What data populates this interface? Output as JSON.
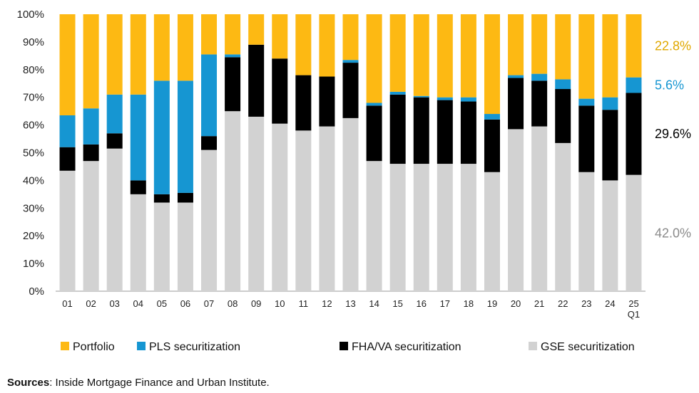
{
  "chart_data": {
    "type": "bar",
    "stacked": true,
    "ylim": [
      0,
      100
    ],
    "yticks": [
      "0%",
      "10%",
      "20%",
      "30%",
      "40%",
      "50%",
      "60%",
      "70%",
      "80%",
      "90%",
      "100%"
    ],
    "categories": [
      "01",
      "02",
      "03",
      "04",
      "05",
      "06",
      "07",
      "08",
      "09",
      "10",
      "11",
      "12",
      "13",
      "14",
      "15",
      "16",
      "17",
      "18",
      "19",
      "20",
      "21",
      "22",
      "23",
      "24",
      "25"
    ],
    "last_category_sublabel": "Q1",
    "series": [
      {
        "name": "GSE securitization",
        "color": "#d2d2d2",
        "values": [
          43.5,
          47,
          51.5,
          35,
          32,
          32,
          51,
          65,
          63,
          60.5,
          58,
          59.5,
          62.5,
          47,
          46,
          46,
          46,
          46,
          43,
          58.5,
          59.5,
          53.5,
          43,
          40,
          42.0
        ]
      },
      {
        "name": "FHA/VA securitization",
        "color": "#000000",
        "values": [
          8.5,
          6,
          5.5,
          5,
          3,
          3.5,
          5,
          19.5,
          26,
          23.5,
          20,
          18,
          20,
          20,
          25,
          24,
          23,
          22.5,
          19,
          18.5,
          16.5,
          19.5,
          24,
          25.5,
          29.6
        ]
      },
      {
        "name": "PLS securitization",
        "color": "#1696d2",
        "values": [
          11.5,
          13,
          14,
          31,
          41,
          40.5,
          29.5,
          1,
          0,
          0,
          0,
          0,
          1,
          1,
          1,
          0.5,
          1,
          1.5,
          2,
          1,
          2.5,
          3.5,
          2.5,
          4.5,
          5.6
        ]
      },
      {
        "name": "Portfolio",
        "color": "#fdb913",
        "values": [
          36.5,
          34,
          29,
          29,
          24,
          24,
          14.5,
          14.5,
          11,
          16,
          22,
          22.5,
          16.5,
          32,
          28,
          29.5,
          30,
          30,
          36,
          22,
          21.5,
          23.5,
          30.5,
          30,
          22.8
        ]
      }
    ],
    "end_labels": [
      {
        "text": "22.8%",
        "color": "#e0a800"
      },
      {
        "text": "5.6%",
        "color": "#1696d2"
      },
      {
        "text": "29.6%",
        "color": "#000000"
      },
      {
        "text": "42.0%",
        "color": "#8a8a8a"
      }
    ],
    "legend": {
      "placement": "bottom",
      "order": [
        "Portfolio",
        "PLS securitization",
        "FHA/VA securitization",
        "GSE securitization"
      ]
    }
  },
  "source": {
    "label": "Sources",
    "text": ": Inside Mortgage Finance and Urban Institute."
  }
}
